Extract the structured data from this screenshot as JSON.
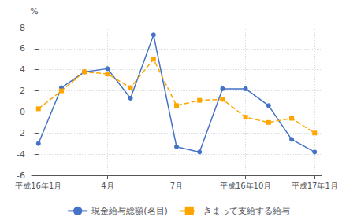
{
  "chart_data": {
    "type": "line",
    "ylabel": "%",
    "x": [
      0,
      1,
      2,
      3,
      4,
      5,
      6,
      7,
      8,
      9,
      10,
      11,
      12
    ],
    "xlim": [
      -0.3,
      12.3
    ],
    "xticks": [
      {
        "value": 0,
        "label": "平成16年1月"
      },
      {
        "value": 3,
        "label": "4月"
      },
      {
        "value": 6,
        "label": "7月"
      },
      {
        "value": 9,
        "label": "平成16年10月"
      },
      {
        "value": 12,
        "label": "平成17年1月"
      }
    ],
    "ylim": [
      -6,
      8
    ],
    "yticks": [
      -6,
      -4,
      -2,
      0,
      2,
      4,
      6,
      8
    ],
    "grid": true,
    "legend": "bottom",
    "series": [
      {
        "name": "現金給与総額(名目)",
        "color": "#4472C4",
        "marker": "circle",
        "line_style": "solid",
        "values": [
          -3.0,
          2.3,
          3.8,
          4.1,
          1.3,
          7.3,
          -3.3,
          -3.8,
          2.2,
          2.2,
          0.6,
          -2.6,
          -3.8
        ]
      },
      {
        "name": "きまって支給する給与",
        "color": "#FFA500",
        "marker": "square",
        "line_style": "dashed",
        "values": [
          0.3,
          2.0,
          3.8,
          3.6,
          2.3,
          5.0,
          0.6,
          1.1,
          1.2,
          -0.5,
          -1.0,
          -0.6,
          -2.0
        ]
      }
    ]
  }
}
